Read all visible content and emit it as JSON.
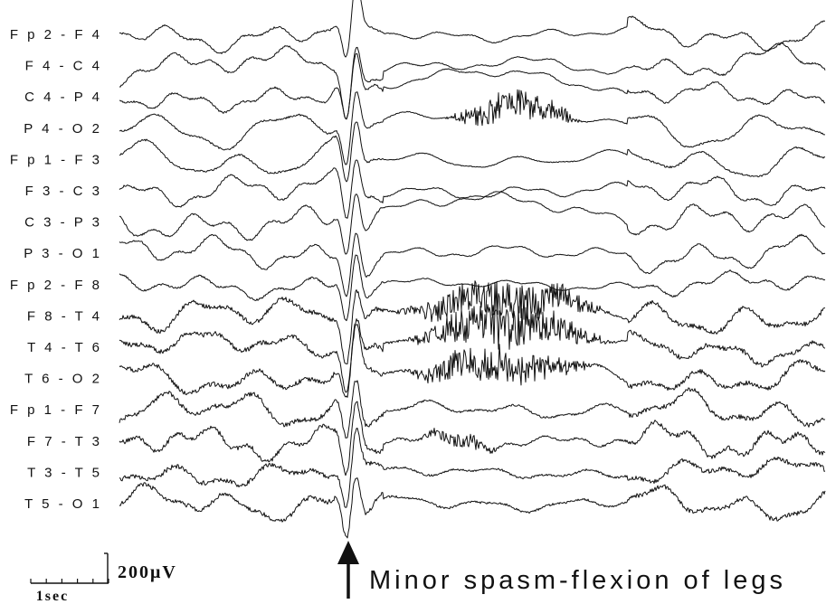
{
  "chart_data": {
    "type": "line",
    "title": "",
    "xlabel": "",
    "ylabel": "",
    "channels": [
      "Fp2-F4",
      "F4-C4",
      "C4-P4",
      "P4-O2",
      "Fp1-F3",
      "F3-C3",
      "C3-P3",
      "P3-O1",
      "Fp2-F8",
      "F8-T4",
      "T4-T6",
      "T6-O2",
      "Fp1-F7",
      "F7-T3",
      "T3-T5",
      "T5-O1"
    ],
    "channel_labels": [
      "F p 2 - F 4",
      "F 4 - C 4",
      "C 4 - P 4",
      "P 4 - O 2",
      "F p 1 - F 3",
      "F 3 - C 3",
      "C 3 - P 3",
      "P 3 - O 1",
      "F p 2 - F 8",
      "F 8 - T 4",
      "T 4 - T 6",
      "T 6 - O 2",
      "F p 1 - F 7",
      "F 7 - T 3",
      "T 3 - T 5",
      "T 5 - O 1"
    ],
    "time_scale_label": "1sec",
    "amplitude_scale_label": "200μV",
    "amplitude_scale_uv": 200,
    "time_scale_seconds": 1,
    "event_annotation": "Minor spasm-flexion of legs",
    "event_time_seconds": 4.6,
    "total_duration_seconds": 14
  }
}
